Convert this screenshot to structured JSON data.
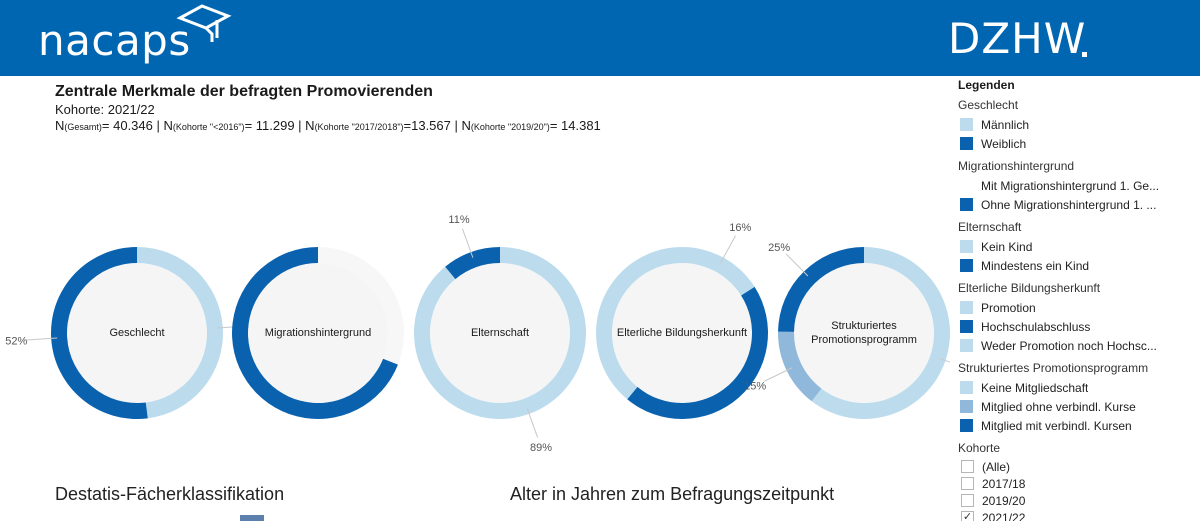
{
  "header": {
    "brand_left": "nacaps",
    "brand_right": "DZHW",
    "brand_color": "#0066b2"
  },
  "dashboard": {
    "title": "Zentrale Merkmale der befragten Promovierenden",
    "subtitle": "Kohorte: 2021/22",
    "n_line": [
      {
        "text": "N",
        "small": false
      },
      {
        "text": "(Gesamt)",
        "small": true
      },
      {
        "text": "= 40.346 | N",
        "small": false
      },
      {
        "text": "(Kohorte \"<2016\")",
        "small": true
      },
      {
        "text": "= 11.299 | N",
        "small": false
      },
      {
        "text": "(Kohorte \"2017/2018\")",
        "small": true
      },
      {
        "text": "=13.567 | N",
        "small": false
      },
      {
        "text": "(Kohorte \"2019/20\")",
        "small": true
      },
      {
        "text": "= 14.381",
        "small": false
      }
    ]
  },
  "chart_data": [
    {
      "type": "pie",
      "title": "Geschlecht",
      "slices": [
        {
          "label": "Männlich",
          "value": 48,
          "color": "#bcdcee",
          "annotation": "48%"
        },
        {
          "label": "Weiblich",
          "value": 52,
          "color": "#0a62ae",
          "annotation": "52%"
        }
      ]
    },
    {
      "type": "pie",
      "title": "Migrationshintergrund",
      "slices": [
        {
          "label": "Mit Migrationshintergrund 1. Generation",
          "value": 31,
          "color": "#f7f7f7",
          "annotation": ""
        },
        {
          "label": "Ohne Migrationshintergrund 1. Generation",
          "value": 69,
          "color": "#0a62ae",
          "annotation": ""
        }
      ]
    },
    {
      "type": "pie",
      "title": "Elternschaft",
      "slices": [
        {
          "label": "Kein Kind",
          "value": 89,
          "color": "#bcdcee",
          "annotation": "89%"
        },
        {
          "label": "Mindestens ein Kind",
          "value": 11,
          "color": "#0a62ae",
          "annotation": "11%"
        }
      ]
    },
    {
      "type": "pie",
      "title": "Elterliche Bildungsherkunft",
      "slices": [
        {
          "label": "Promotion",
          "value": 16,
          "color": "#bcdcee",
          "annotation": "16%"
        },
        {
          "label": "Hochschulabschluss",
          "value": 45,
          "color": "#0a62ae",
          "annotation": ""
        },
        {
          "label": "Weder Promotion noch Hochschulabschluss",
          "value": 39,
          "color": "#bcdcee",
          "annotation": ""
        }
      ]
    },
    {
      "type": "pie",
      "title": "Strukturiertes Promotionsprogramm",
      "slices": [
        {
          "label": "Keine Mitgliedschaft",
          "value": 61,
          "color": "#bcdcee",
          "annotation": "61%"
        },
        {
          "label": "Mitglied ohne verbindl. Kurse",
          "value": 15,
          "color": "#8fb8db",
          "annotation": "15%"
        },
        {
          "label": "Mitglied mit verbindl. Kursen",
          "value": 25,
          "color": "#0a62ae",
          "annotation": "25%"
        }
      ]
    }
  ],
  "donut_labels": [
    {
      "line1": "Geschlecht",
      "line2": ""
    },
    {
      "line1": "Migrationshintergrund",
      "line2": ""
    },
    {
      "line1": "Elternschaft",
      "line2": ""
    },
    {
      "line1": "Elterliche Bildungsherkunft",
      "line2": ""
    },
    {
      "line1": "Strukturiertes",
      "line2": "Promotionsprogramm"
    }
  ],
  "sections": {
    "faecher": "Destatis-Fächerklassifikation",
    "alter": "Alter in Jahren zum Befragungszeitpunkt"
  },
  "legend": {
    "title": "Legenden",
    "groups": [
      {
        "title": "Geschlecht",
        "items": [
          {
            "label": "Männlich",
            "color": "#bcdcee"
          },
          {
            "label": "Weiblich",
            "color": "#0a62ae"
          }
        ]
      },
      {
        "title": "Migrationshintergrund",
        "items": [
          {
            "label": "Mit Migrationshintergrund 1. Ge...",
            "color": "#ffffff"
          },
          {
            "label": "Ohne Migrationshintergrund 1. ...",
            "color": "#0a62ae"
          }
        ]
      },
      {
        "title": "Elternschaft",
        "items": [
          {
            "label": "Kein Kind",
            "color": "#bcdcee"
          },
          {
            "label": "Mindestens ein Kind",
            "color": "#0a62ae"
          }
        ]
      },
      {
        "title": "Elterliche Bildungsherkunft",
        "items": [
          {
            "label": "Promotion",
            "color": "#bcdcee"
          },
          {
            "label": "Hochschulabschluss",
            "color": "#0a62ae"
          },
          {
            "label": "Weder Promotion noch Hochsc...",
            "color": "#bcdcee"
          }
        ]
      },
      {
        "title": "Strukturiertes Promotionsprogramm",
        "items": [
          {
            "label": "Keine Mitgliedschaft",
            "color": "#bcdcee"
          },
          {
            "label": "Mitglied ohne verbindl. Kurse",
            "color": "#8fb8db"
          },
          {
            "label": "Mitglied mit verbindl. Kursen",
            "color": "#0a62ae"
          }
        ]
      }
    ],
    "kohorte": {
      "title": "Kohorte",
      "options": [
        {
          "label": "(Alle)",
          "checked": false
        },
        {
          "label": "2017/18",
          "checked": false
        },
        {
          "label": "2019/20",
          "checked": false
        },
        {
          "label": "2021/22",
          "checked": true
        }
      ]
    }
  }
}
